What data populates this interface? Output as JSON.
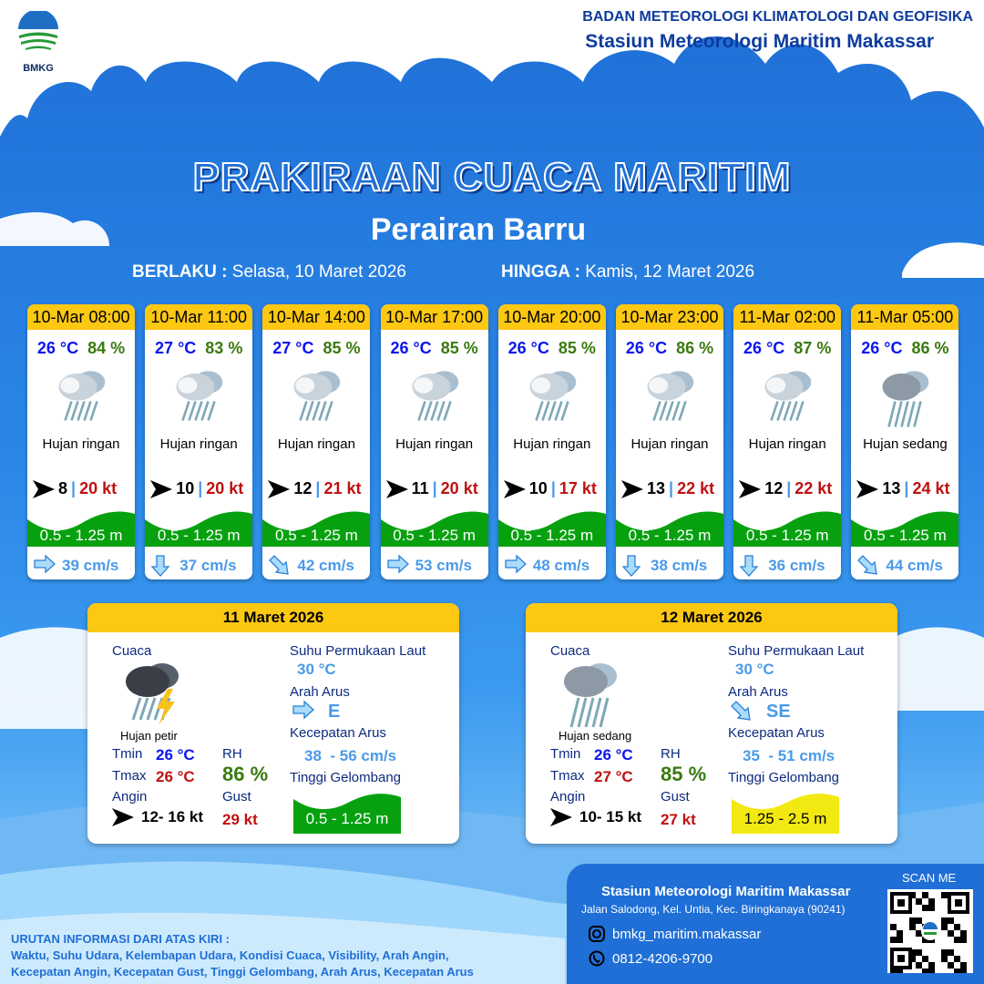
{
  "header": {
    "logo_text": "BMKG",
    "agency": "BADAN METEOROLOGI KLIMATOLOGI DAN GEOFISIKA",
    "station": "Stasiun Meteorologi Maritim Makassar"
  },
  "title": "PRAKIRAAN CUACA MARITIM",
  "subtitle": "Perairan Barru",
  "validity": {
    "from_label": "BERLAKU :",
    "from": "Selasa, 10 Maret 2026",
    "to_label": "HINGGA :",
    "to": "Kamis, 12 Maret 2026"
  },
  "colors": {
    "header_yellow": "#fcc812",
    "wave_green": "#07a10f",
    "wave_yellow": "#f2e812",
    "temp": "#0a14f0",
    "rh": "#3a7a10",
    "gust": "#c01010",
    "current": "#4a9ae8"
  },
  "forecasts": [
    {
      "time": "10-Mar 08:00",
      "temp": "26 °C",
      "rh": "84 %",
      "icon": "light-rain-icon",
      "cond": "Hujan ringan",
      "wind": "8",
      "gust": "20 kt",
      "wave": "0.5 - 1.25 m",
      "cur_dir": "east",
      "cur": "39 cm/s"
    },
    {
      "time": "10-Mar 11:00",
      "temp": "27 °C",
      "rh": "83 %",
      "icon": "light-rain-icon",
      "cond": "Hujan ringan",
      "wind": "10",
      "gust": "20 kt",
      "wave": "0.5 - 1.25 m",
      "cur_dir": "south",
      "cur": "37 cm/s"
    },
    {
      "time": "10-Mar 14:00",
      "temp": "27 °C",
      "rh": "85 %",
      "icon": "light-rain-icon",
      "cond": "Hujan ringan",
      "wind": "12",
      "gust": "21 kt",
      "wave": "0.5 - 1.25 m",
      "cur_dir": "southeast",
      "cur": "42 cm/s"
    },
    {
      "time": "10-Mar 17:00",
      "temp": "26 °C",
      "rh": "85 %",
      "icon": "light-rain-icon",
      "cond": "Hujan ringan",
      "wind": "11",
      "gust": "20 kt",
      "wave": "0.5 - 1.25 m",
      "cur_dir": "east",
      "cur": "53 cm/s"
    },
    {
      "time": "10-Mar 20:00",
      "temp": "26 °C",
      "rh": "85 %",
      "icon": "light-rain-icon",
      "cond": "Hujan ringan",
      "wind": "10",
      "gust": "17 kt",
      "wave": "0.5 - 1.25 m",
      "cur_dir": "east",
      "cur": "48 cm/s"
    },
    {
      "time": "10-Mar 23:00",
      "temp": "26 °C",
      "rh": "86 %",
      "icon": "light-rain-icon",
      "cond": "Hujan ringan",
      "wind": "13",
      "gust": "22 kt",
      "wave": "0.5 - 1.25 m",
      "cur_dir": "south",
      "cur": "38 cm/s"
    },
    {
      "time": "11-Mar 02:00",
      "temp": "26 °C",
      "rh": "87 %",
      "icon": "light-rain-icon",
      "cond": "Hujan ringan",
      "wind": "12",
      "gust": "22 kt",
      "wave": "0.5 - 1.25 m",
      "cur_dir": "south",
      "cur": "36 cm/s"
    },
    {
      "time": "11-Mar 05:00",
      "temp": "26 °C",
      "rh": "86 %",
      "icon": "moderate-rain-icon",
      "cond": "Hujan sedang",
      "wind": "13",
      "gust": "24 kt",
      "wave": "0.5 - 1.25 m",
      "cur_dir": "southeast",
      "cur": "44 cm/s"
    }
  ],
  "labels": {
    "cuaca": "Cuaca",
    "sst": "Suhu Permukaan Laut",
    "arah": "Arah Arus",
    "kec": "Kecepatan Arus",
    "tinggi": "Tinggi Gelombang",
    "tmin": "Tmin",
    "tmax": "Tmax",
    "rh": "RH",
    "angin": "Angin",
    "gust": "Gust"
  },
  "daily": [
    {
      "date": "11 Maret 2026",
      "icon": "thunderstorm-icon",
      "cond": "Hujan petir",
      "tmin": "26 °C",
      "tmax": "26 °C",
      "rh": "86 %",
      "wind": "12- 16 kt",
      "gust": "29 kt",
      "sst": "30 °C",
      "cur_dir": "E",
      "cur_dir_icon": "east",
      "cur": "38  - 56 cm/s",
      "wave": "0.5 - 1.25 m",
      "wave_color": "#07a10f"
    },
    {
      "date": "12 Maret 2026",
      "icon": "moderate-rain-icon",
      "cond": "Hujan sedang",
      "tmin": "26 °C",
      "tmax": "27 °C",
      "rh": "85 %",
      "wind": "10- 15 kt",
      "gust": "27 kt",
      "sst": "30 °C",
      "cur_dir": "SE",
      "cur_dir_icon": "southeast",
      "cur": "35  - 51 cm/s",
      "wave": "1.25 - 2.5 m",
      "wave_color": "#f2e812"
    }
  ],
  "legend": {
    "title": "URUTAN INFORMASI DARI ATAS KIRI :",
    "line1": "Waktu, Suhu Udara, Kelembapan Udara, Kondisi Cuaca, Visibility, Arah Angin,",
    "line2": "Kecepatan Angin, Kecepatan Gust, Tinggi Gelombang, Arah Arus, Kecepatan Arus"
  },
  "footer": {
    "station": "Stasiun Meteorologi Maritim Makassar",
    "address": "Jalan Salodong, Kel. Untia, Kec. Biringkanaya (90241)",
    "instagram": "bmkg_maritim.makassar",
    "phone": "0812-4206-9700",
    "scan": "SCAN ME"
  }
}
